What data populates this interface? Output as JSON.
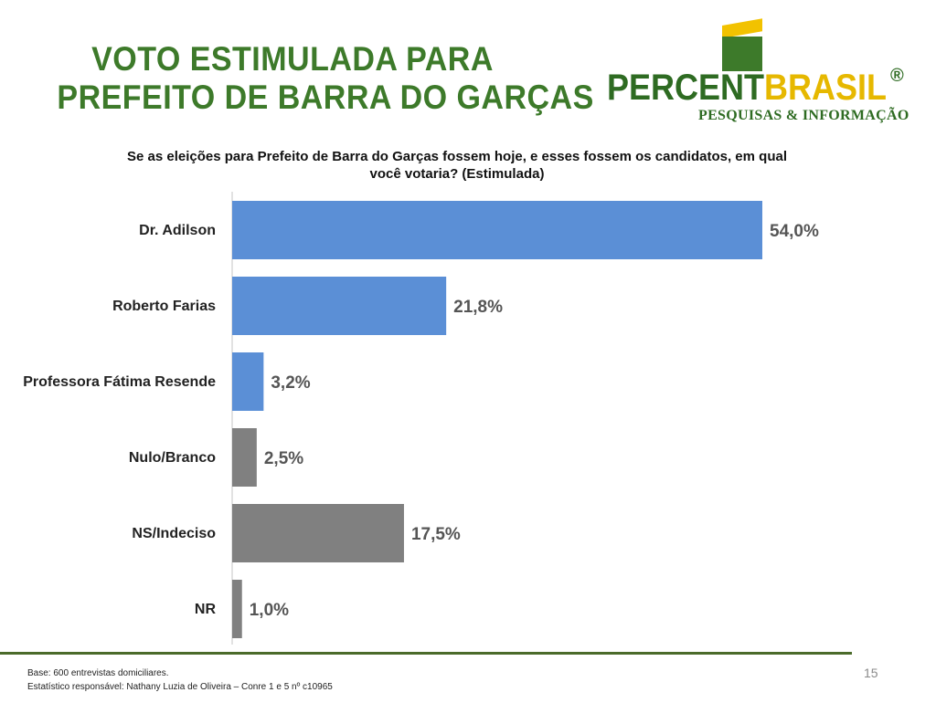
{
  "title": {
    "line1": "VOTO ESTIMULADA PARA",
    "line2": "PREFEITO DE BARRA DO GARÇAS"
  },
  "logo": {
    "word1": "PERCENT",
    "word2": "BRASIL",
    "reg": "®",
    "tagline": "PESQUISAS & INFORMAÇÃO"
  },
  "question": {
    "line1": "Se as eleições para Prefeito de Barra do Garças fossem hoje, e esses fossem os  candidatos, em qual",
    "line2": "você votaria? (Estimulada)"
  },
  "chart_data": {
    "type": "bar",
    "orientation": "horizontal",
    "categories": [
      "Dr. Adilson",
      "Roberto Farias",
      "Professora Fátima Resende",
      "Nulo/Branco",
      "NS/Indeciso",
      "NR"
    ],
    "values": [
      54.0,
      21.8,
      3.2,
      2.5,
      17.5,
      1.0
    ],
    "value_labels": [
      "54,0%",
      "21,8%",
      "3,2%",
      "2,5%",
      "17,5%",
      "1,0%"
    ],
    "bar_colors": [
      "#5b8fd6",
      "#5b8fd6",
      "#5b8fd6",
      "#808080",
      "#808080",
      "#808080"
    ],
    "xlim": [
      0,
      54
    ],
    "grid": false,
    "legend": "none"
  },
  "footer": {
    "base": "Base: 600 entrevistas domiciliares.",
    "responsavel": "Estatístico responsável: Nathany Luzia de Oliveira – Conre 1 e 5 nº c10965"
  },
  "page_number": "15"
}
